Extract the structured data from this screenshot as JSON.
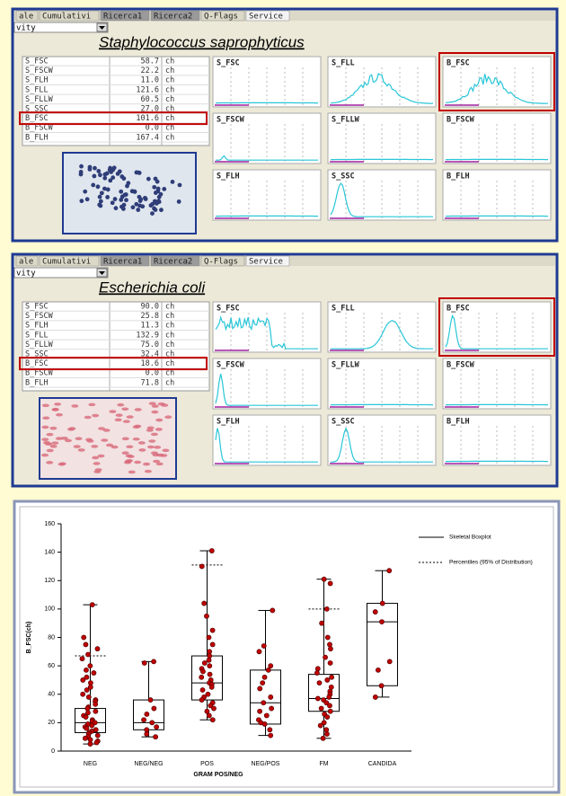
{
  "panels": [
    {
      "tabs": [
        "ale",
        "Cumulativi",
        "Ricerca1",
        "Ricerca2",
        "Q-Flags",
        "Service"
      ],
      "dropdown": "vity",
      "organism": "Staphylococcus saprophyticus",
      "params": [
        [
          "S_FSC",
          "58.7",
          "ch"
        ],
        [
          "S_FSCW",
          "22.2",
          "ch"
        ],
        [
          "S_FLH",
          "11.0",
          "ch"
        ],
        [
          "S_FLL",
          "121.6",
          "ch"
        ],
        [
          "S_FLLW",
          "60.5",
          "ch"
        ],
        [
          "S_SSC",
          "27.0",
          "ch"
        ],
        [
          "B_FSC",
          "101.6",
          "ch"
        ],
        [
          "B_FSCW",
          "0.0",
          "ch"
        ],
        [
          "B_FLH",
          "167.4",
          "ch"
        ]
      ],
      "histograms": [
        "S_FSC",
        "S_FLL",
        "B_FSC",
        "S_FSCW",
        "S_FLLW",
        "B_FSCW",
        "S_FLH",
        "S_SSC",
        "B_FLH"
      ]
    },
    {
      "tabs": [
        "ale",
        "Cumulativi",
        "Ricerca1",
        "Ricerca2",
        "Q-Flags",
        "Service"
      ],
      "dropdown": "vity",
      "organism": "Escherichia coli",
      "params": [
        [
          "S_FSC",
          "90.0",
          "ch"
        ],
        [
          "S_FSCW",
          "25.8",
          "ch"
        ],
        [
          "S_FLH",
          "11.3",
          "ch"
        ],
        [
          "S_FLL",
          "132.9",
          "ch"
        ],
        [
          "S_FLLW",
          "75.0",
          "ch"
        ],
        [
          "S_SSC",
          "32.4",
          "ch"
        ],
        [
          "B_FSC",
          "18.6",
          "ch"
        ],
        [
          "B_FSCW",
          "0.0",
          "ch"
        ],
        [
          "B_FLH",
          "71.8",
          "ch"
        ]
      ],
      "histograms": [
        "S_FSC",
        "S_FLL",
        "B_FSC",
        "S_FSCW",
        "S_FLLW",
        "B_FSCW",
        "S_FLH",
        "S_SSC",
        "B_FLH"
      ]
    }
  ],
  "chart_data": {
    "type": "boxplot",
    "y_label": "B_FSC(ch)",
    "x_label": "GRAM POS/NEG",
    "categories": [
      "NEG",
      "NEG/NEG",
      "POS",
      "NEG/POS",
      "FM",
      "CANDIDA"
    ],
    "ylim": [
      0,
      160
    ],
    "yticks": [
      0,
      20,
      40,
      60,
      80,
      100,
      120,
      140,
      160
    ],
    "legend": [
      "Skeletal Boxplot",
      "Percentiles (95% of Distribution)"
    ],
    "point_color": "#c00000",
    "boxes": [
      {
        "min": 5,
        "q1": 13,
        "median": 20,
        "q3": 30,
        "max": 103,
        "p95": 67
      },
      {
        "min": 10,
        "q1": 15,
        "median": 20,
        "q3": 36,
        "max": 63
      },
      {
        "min": 22,
        "q1": 36,
        "median": 48,
        "q3": 67,
        "max": 141,
        "p95": 131
      },
      {
        "min": 11,
        "q1": 19,
        "median": 34,
        "q3": 57,
        "max": 99
      },
      {
        "min": 9,
        "q1": 28,
        "median": 37,
        "q3": 54,
        "max": 121,
        "p95": 100
      },
      {
        "min": 38,
        "q1": 46,
        "median": 91,
        "q3": 104,
        "max": 127
      }
    ],
    "points": [
      [
        103,
        80,
        75,
        72,
        68,
        65,
        60,
        57,
        55,
        52,
        50,
        48,
        45,
        43,
        40,
        38,
        36,
        35,
        33,
        31,
        30,
        28,
        27,
        25,
        24,
        22,
        21,
        20,
        19,
        18,
        17,
        16,
        15,
        14,
        13,
        12,
        11,
        10,
        9,
        8,
        7,
        6,
        5
      ],
      [
        63,
        62,
        36,
        30,
        26,
        22,
        20,
        17,
        15,
        12,
        10
      ],
      [
        141,
        130,
        104,
        95,
        85,
        80,
        75,
        70,
        67,
        64,
        62,
        60,
        58,
        56,
        54,
        52,
        50,
        48,
        47,
        45,
        43,
        40,
        38,
        36,
        34,
        32,
        30,
        28,
        25,
        22
      ],
      [
        99,
        74,
        70,
        60,
        57,
        52,
        48,
        44,
        38,
        34,
        30,
        28,
        25,
        22,
        20,
        19,
        15,
        11
      ],
      [
        121,
        118,
        100,
        90,
        80,
        75,
        72,
        66,
        62,
        58,
        55,
        52,
        50,
        48,
        45,
        42,
        40,
        38,
        37,
        36,
        34,
        32,
        30,
        28,
        26,
        24,
        20,
        18,
        15,
        12,
        9
      ],
      [
        127,
        104,
        98,
        91,
        63,
        57,
        46,
        38
      ]
    ]
  }
}
